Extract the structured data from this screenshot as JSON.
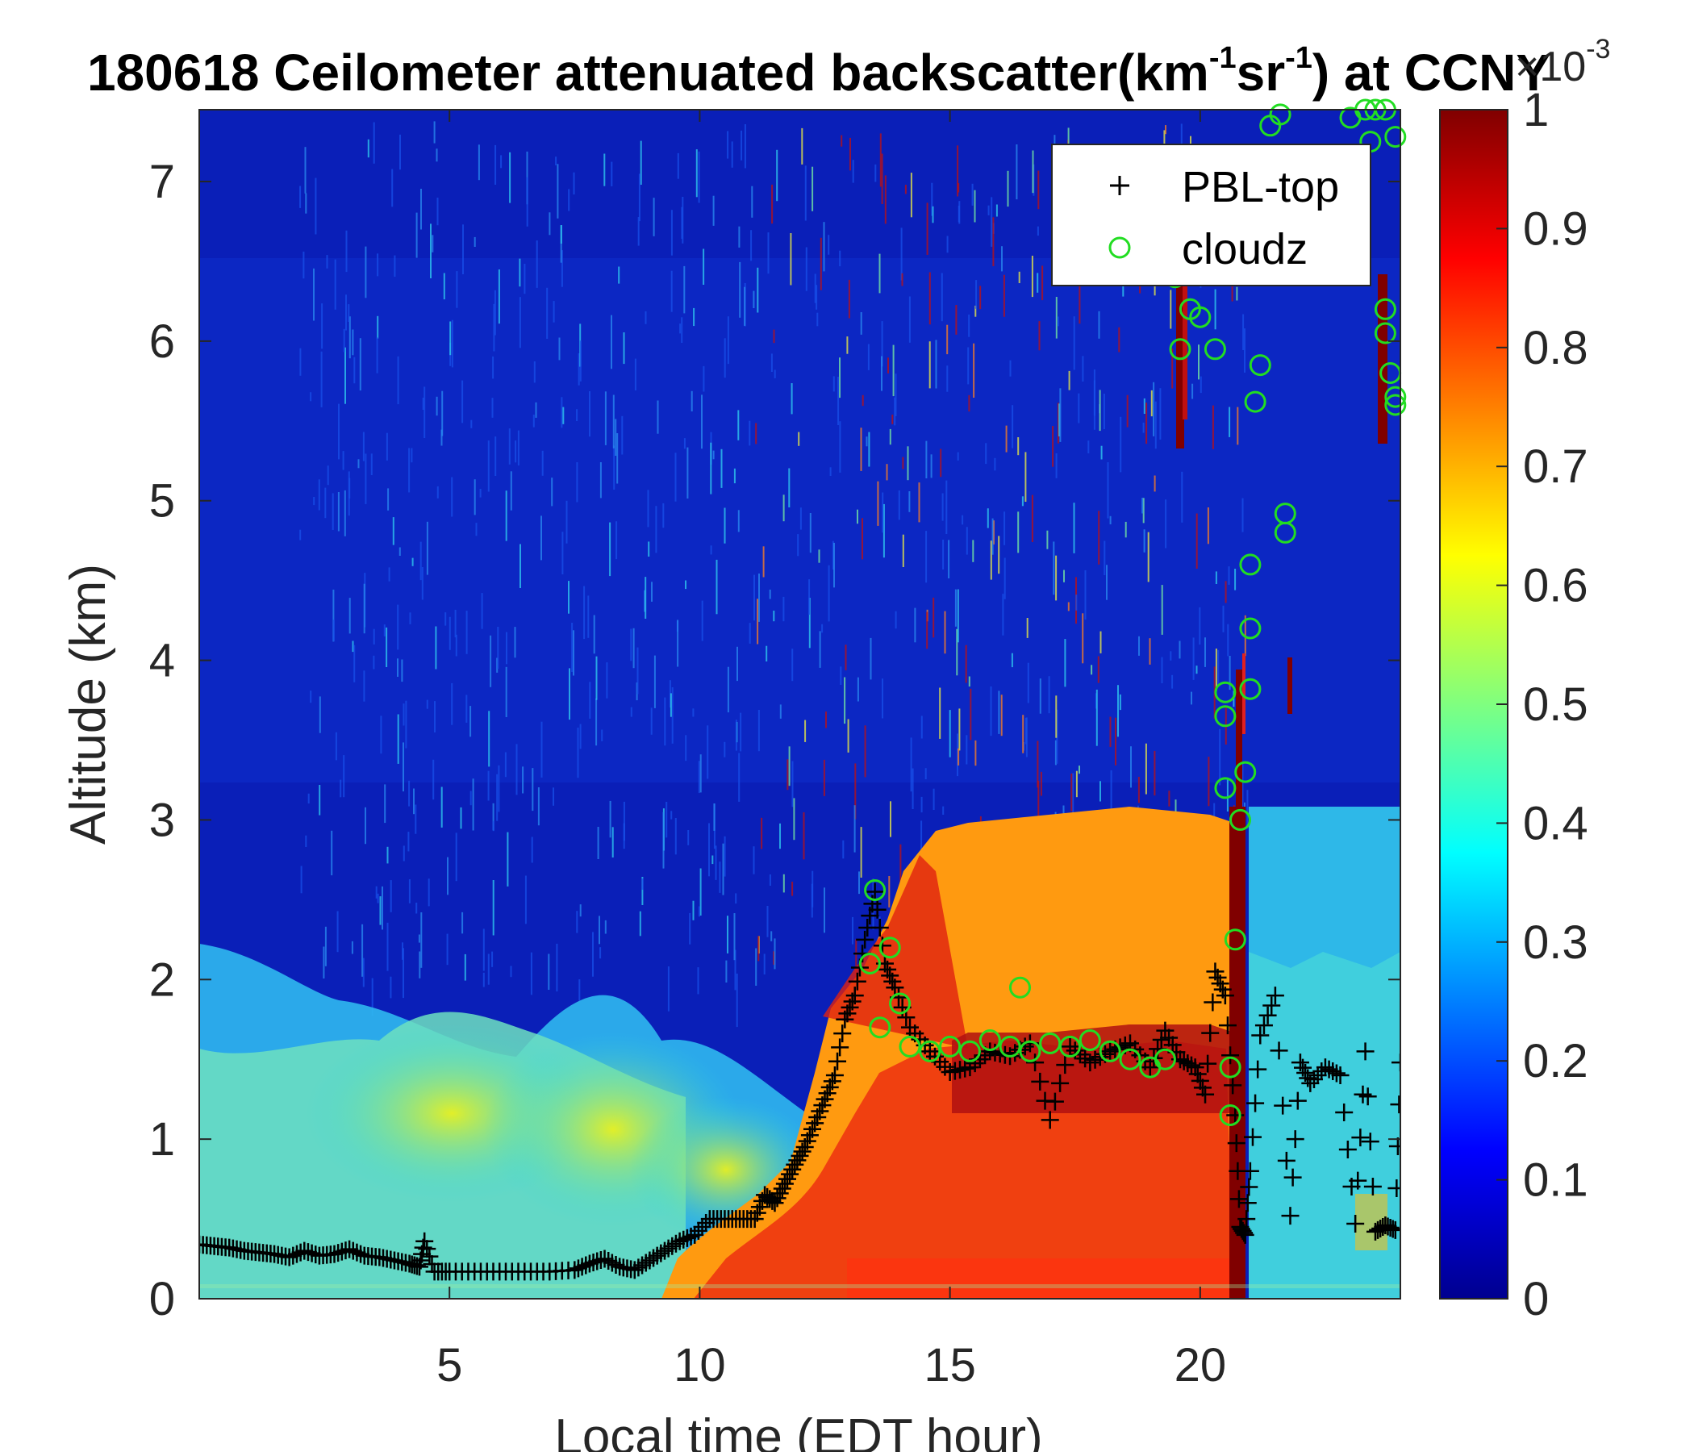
{
  "chart_data": {
    "type": "heatmap",
    "title_main": "180618 Ceilometer attenuated backscatter(km",
    "title_sup1": "-1",
    "title_mid": "sr",
    "title_sup2": "-1",
    "title_end": ") at CCNY",
    "xlabel": "Local time (EDT hour)",
    "ylabel": "Altitude (km)",
    "xlim": [
      0,
      24
    ],
    "ylim": [
      0,
      7.45
    ],
    "xticks": [
      "5",
      "10",
      "15",
      "20"
    ],
    "yticks": [
      "0",
      "1",
      "2",
      "3",
      "4",
      "5",
      "6",
      "7"
    ],
    "colorbar": {
      "ticks": [
        "0",
        "0.1",
        "0.2",
        "0.3",
        "0.4",
        "0.5",
        "0.6",
        "0.7",
        "0.8",
        "0.9",
        "1"
      ],
      "exponent_base": "×10",
      "exponent_power": "-3",
      "colormap": "jet",
      "range": [
        0,
        1
      ]
    },
    "legend": {
      "position": "top-right",
      "entries": [
        {
          "name": "PBL-top",
          "marker": "+",
          "color": "#000000"
        },
        {
          "name": "cloudz",
          "marker": "o",
          "color": "#22dd22"
        }
      ]
    },
    "pbl_top": [
      [
        0.0,
        0.34
      ],
      [
        0.3,
        0.33
      ],
      [
        0.6,
        0.32
      ],
      [
        0.9,
        0.3
      ],
      [
        1.2,
        0.29
      ],
      [
        1.5,
        0.28
      ],
      [
        1.8,
        0.26
      ],
      [
        2.1,
        0.3
      ],
      [
        2.4,
        0.27
      ],
      [
        2.7,
        0.28
      ],
      [
        3.0,
        0.31
      ],
      [
        3.3,
        0.27
      ],
      [
        3.6,
        0.26
      ],
      [
        3.9,
        0.24
      ],
      [
        4.2,
        0.22
      ],
      [
        4.4,
        0.2
      ],
      [
        4.5,
        0.36
      ],
      [
        4.7,
        0.17
      ],
      [
        5.0,
        0.17
      ],
      [
        5.5,
        0.17
      ],
      [
        6.0,
        0.17
      ],
      [
        6.5,
        0.17
      ],
      [
        7.0,
        0.17
      ],
      [
        7.5,
        0.18
      ],
      [
        7.8,
        0.22
      ],
      [
        8.1,
        0.25
      ],
      [
        8.4,
        0.2
      ],
      [
        8.7,
        0.18
      ],
      [
        9.0,
        0.24
      ],
      [
        9.3,
        0.3
      ],
      [
        9.6,
        0.36
      ],
      [
        9.9,
        0.4
      ],
      [
        10.2,
        0.5
      ],
      [
        10.5,
        0.5
      ],
      [
        10.8,
        0.5
      ],
      [
        11.1,
        0.5
      ],
      [
        11.3,
        0.65
      ],
      [
        11.5,
        0.6
      ],
      [
        11.7,
        0.72
      ],
      [
        11.9,
        0.84
      ],
      [
        12.1,
        0.95
      ],
      [
        12.3,
        1.1
      ],
      [
        12.5,
        1.25
      ],
      [
        12.7,
        1.4
      ],
      [
        12.9,
        1.75
      ],
      [
        13.1,
        1.9
      ],
      [
        13.3,
        2.25
      ],
      [
        13.5,
        2.55
      ],
      [
        13.7,
        2.1
      ],
      [
        13.9,
        1.95
      ],
      [
        14.2,
        1.7
      ],
      [
        14.6,
        1.55
      ],
      [
        15.0,
        1.42
      ],
      [
        15.4,
        1.45
      ],
      [
        15.8,
        1.55
      ],
      [
        16.2,
        1.52
      ],
      [
        16.6,
        1.6
      ],
      [
        17.0,
        1.12
      ],
      [
        17.4,
        1.58
      ],
      [
        17.8,
        1.48
      ],
      [
        18.2,
        1.55
      ],
      [
        18.6,
        1.6
      ],
      [
        19.0,
        1.45
      ],
      [
        19.3,
        1.68
      ],
      [
        19.6,
        1.5
      ],
      [
        19.9,
        1.45
      ],
      [
        20.1,
        1.28
      ],
      [
        20.3,
        2.05
      ],
      [
        20.5,
        1.9
      ],
      [
        20.7,
        1.15
      ],
      [
        20.8,
        0.45
      ],
      [
        20.9,
        0.4
      ],
      [
        21.0,
        0.8
      ],
      [
        21.2,
        1.65
      ],
      [
        21.5,
        1.9
      ],
      [
        21.8,
        0.52
      ],
      [
        22.0,
        1.48
      ],
      [
        22.2,
        1.35
      ],
      [
        22.5,
        1.45
      ],
      [
        22.8,
        1.4
      ],
      [
        23.1,
        0.47
      ],
      [
        23.3,
        1.55
      ],
      [
        23.5,
        0.42
      ],
      [
        23.7,
        0.46
      ],
      [
        23.9,
        0.43
      ],
      [
        24.0,
        1.48
      ]
    ],
    "cloudz": [
      [
        13.5,
        2.56
      ],
      [
        13.4,
        2.1
      ],
      [
        13.6,
        1.7
      ],
      [
        13.8,
        2.2
      ],
      [
        14.0,
        1.85
      ],
      [
        14.2,
        1.58
      ],
      [
        14.6,
        1.55
      ],
      [
        15.0,
        1.58
      ],
      [
        15.4,
        1.55
      ],
      [
        15.8,
        1.62
      ],
      [
        16.2,
        1.58
      ],
      [
        16.4,
        1.95
      ],
      [
        16.6,
        1.55
      ],
      [
        17.0,
        1.6
      ],
      [
        17.4,
        1.58
      ],
      [
        17.8,
        1.62
      ],
      [
        18.2,
        1.55
      ],
      [
        18.6,
        1.5
      ],
      [
        19.0,
        1.45
      ],
      [
        19.3,
        1.5
      ],
      [
        20.6,
        1.15
      ],
      [
        20.6,
        1.45
      ],
      [
        20.7,
        2.25
      ],
      [
        20.5,
        3.2
      ],
      [
        20.5,
        3.65
      ],
      [
        20.5,
        3.8
      ],
      [
        20.8,
        3.0
      ],
      [
        20.9,
        3.3
      ],
      [
        21.0,
        3.82
      ],
      [
        21.0,
        4.2
      ],
      [
        21.0,
        4.6
      ],
      [
        21.1,
        5.62
      ],
      [
        21.2,
        5.85
      ],
      [
        21.7,
        4.8
      ],
      [
        21.7,
        4.92
      ],
      [
        20.3,
        5.95
      ],
      [
        19.6,
        5.95
      ],
      [
        19.8,
        6.2
      ],
      [
        20.0,
        6.15
      ],
      [
        19.5,
        6.4
      ],
      [
        20.3,
        6.45
      ],
      [
        23.7,
        6.2
      ],
      [
        23.7,
        6.05
      ],
      [
        23.8,
        5.8
      ],
      [
        23.9,
        5.6
      ],
      [
        23.9,
        5.65
      ],
      [
        23.3,
        7.45
      ],
      [
        23.5,
        7.45
      ],
      [
        23.7,
        7.45
      ],
      [
        23.0,
        7.4
      ],
      [
        23.4,
        7.25
      ],
      [
        23.9,
        7.28
      ],
      [
        21.4,
        7.35
      ],
      [
        21.6,
        7.42
      ]
    ]
  }
}
